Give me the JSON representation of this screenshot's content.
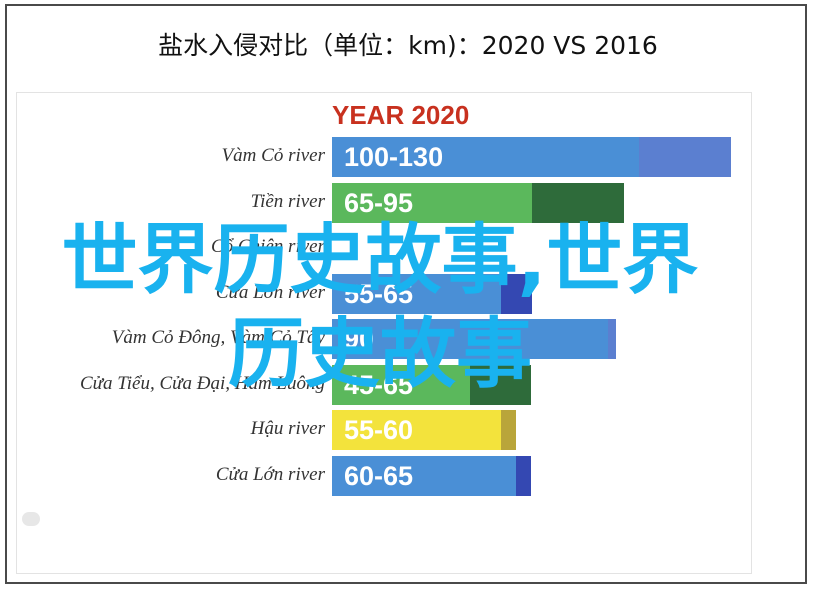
{
  "title": "盐水入侵对比（单位：km)：2020 VS 2016",
  "watermark": {
    "line1": "世界历史故事,世界",
    "line2": "历史故事"
  },
  "chart_data": {
    "type": "bar",
    "orientation": "horizontal",
    "heading": "YEAR 2020",
    "categories": [
      "Vàm Cỏ river",
      "Tiền river",
      "Cổ Chiên river",
      "Cửa Lớn river",
      "Vàm Cỏ Đông, Vàm Cỏ Tây",
      "Cửa Tiểu, Cửa Đại, Hàm Luông",
      "Hậu river",
      "Cửa Lớn river"
    ],
    "series": [
      {
        "labels": [
          "100-130",
          "65-95",
          "",
          "55-65",
          "90",
          "45-65",
          "55-60",
          "60-65"
        ],
        "min": [
          100,
          65,
          0,
          55,
          90,
          45,
          55,
          60
        ],
        "max": [
          130,
          95,
          0,
          65,
          90,
          65,
          60,
          65
        ]
      }
    ],
    "category_colors": [
      "#4a8fd6",
      "#5bb85c",
      "#5bb85c",
      "#4a8fd6",
      "#4a8fd6",
      "#5bb85c",
      "#f3e33c",
      "#4a8fd6"
    ],
    "extension_colors": [
      "#5b7fd0",
      "#2e6b3a",
      "#2e6b3a",
      "#3448b2",
      "#5b7fd0",
      "#2e6b3a",
      "#b9a53a",
      "#3448b2"
    ],
    "xlim": [
      0,
      140
    ],
    "grid": false,
    "legend": "none"
  }
}
